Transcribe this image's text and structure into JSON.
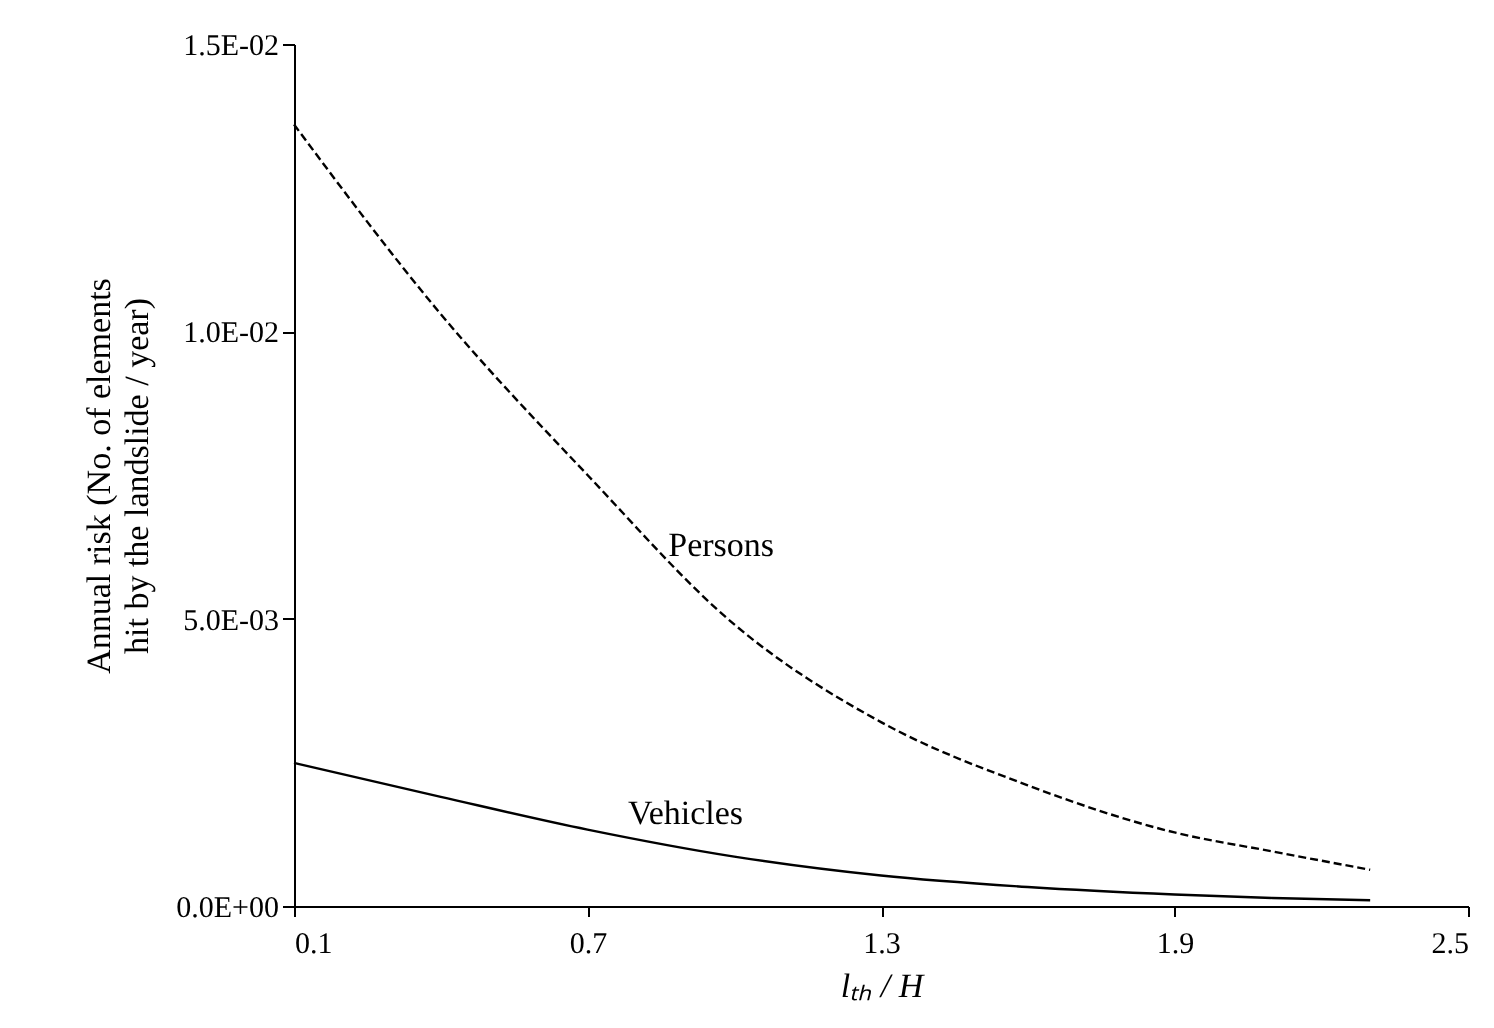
{
  "chart_data": {
    "type": "line",
    "xlabel": "lₜₕ / H",
    "ylabel": "Annual risk (No. of elements hit by the landslide / year)",
    "xlim": [
      0.1,
      2.5
    ],
    "xticks": [
      0.1,
      0.7,
      1.3,
      1.9,
      2.5
    ],
    "ylim": [
      0,
      0.015
    ],
    "yticks": [
      {
        "value": 0,
        "label": "0.0E+00"
      },
      {
        "value": 0.005,
        "label": "5.0E-03"
      },
      {
        "value": 0.01,
        "label": "1.0E-02"
      },
      {
        "value": 0.015,
        "label": "1.5E-02"
      }
    ],
    "grid": false,
    "x": [
      0.1,
      0.4,
      0.7,
      1.0,
      1.3,
      1.6,
      1.9,
      2.1,
      2.3
    ],
    "series": [
      {
        "name": "Persons",
        "color": "#000000",
        "line_style": "dashed",
        "values": [
          0.0136,
          0.0103,
          0.0075,
          0.0049,
          0.0032,
          0.0021,
          0.00128,
          0.00095,
          0.00063
        ]
      },
      {
        "name": "Vehicles",
        "color": "#000000",
        "line_style": "solid",
        "values": [
          0.00249,
          0.0019,
          0.00133,
          0.00086,
          0.00053,
          0.00033,
          0.0002,
          0.00014,
          0.0001
        ]
      }
    ]
  }
}
